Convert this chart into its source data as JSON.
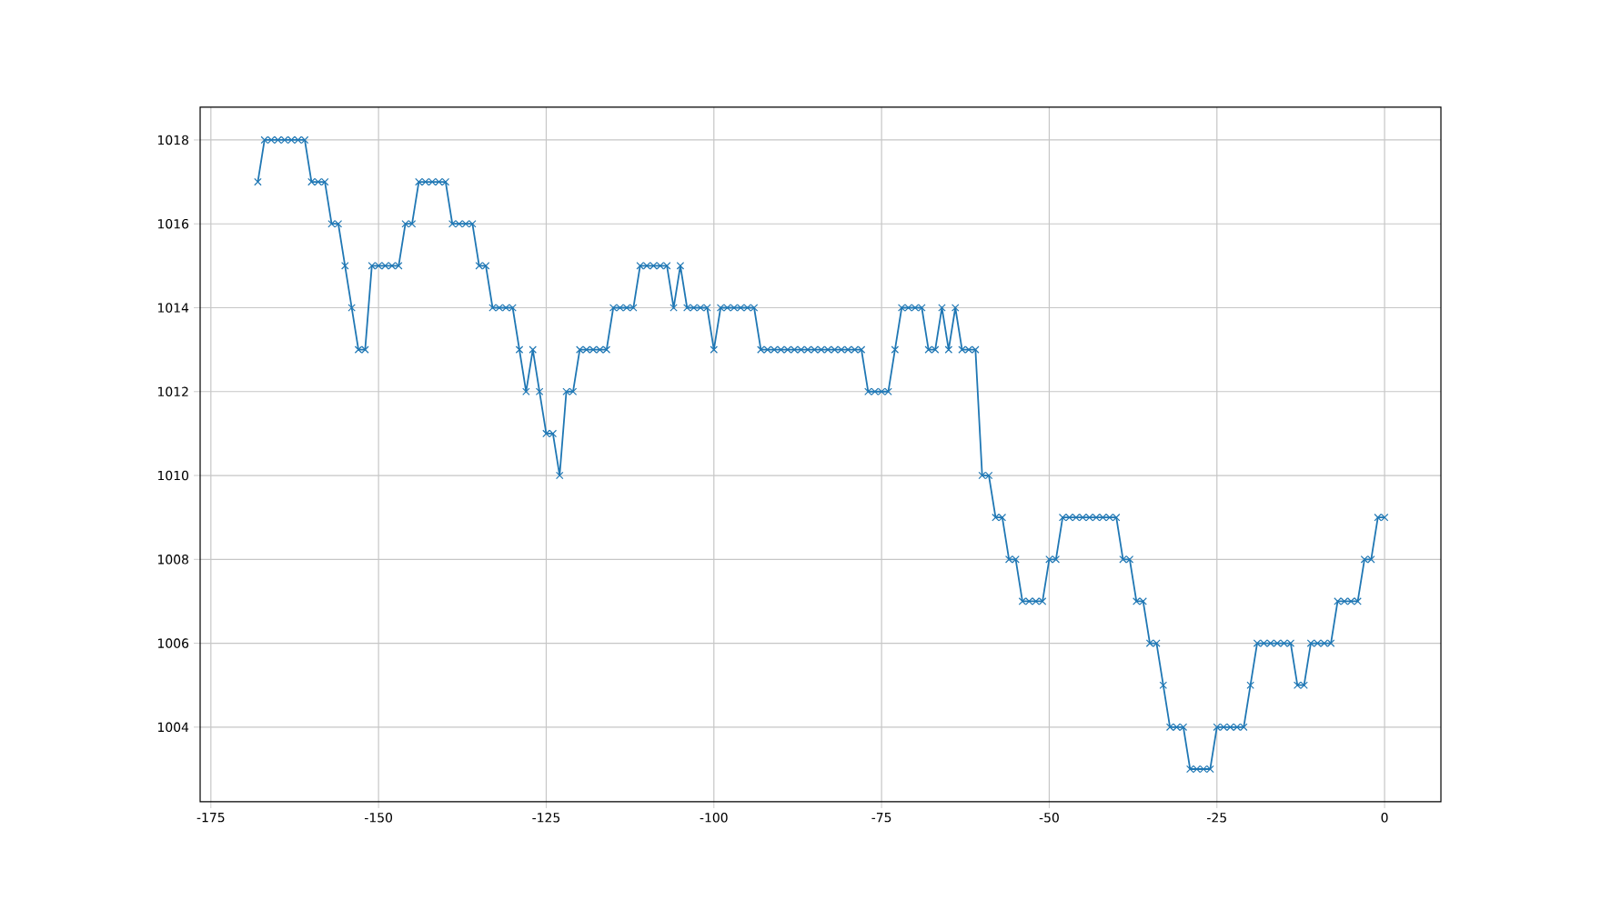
{
  "chart_data": {
    "type": "line",
    "marker": "cross",
    "grid": true,
    "color": "#1f77b4",
    "x": [
      -168,
      -167,
      -166,
      -165,
      -164,
      -163,
      -162,
      -161,
      -160,
      -159,
      -158,
      -157,
      -156,
      -155,
      -154,
      -153,
      -152,
      -151,
      -150,
      -149,
      -148,
      -147,
      -146,
      -145,
      -144,
      -143,
      -142,
      -141,
      -140,
      -139,
      -138,
      -137,
      -136,
      -135,
      -134,
      -133,
      -132,
      -131,
      -130,
      -129,
      -128,
      -127,
      -126,
      -125,
      -124,
      -123,
      -122,
      -121,
      -120,
      -119,
      -118,
      -117,
      -116,
      -115,
      -114,
      -113,
      -112,
      -111,
      -110,
      -109,
      -108,
      -107,
      -106,
      -105,
      -104,
      -103,
      -102,
      -101,
      -100,
      -99,
      -98,
      -97,
      -96,
      -95,
      -94,
      -93,
      -92,
      -91,
      -90,
      -89,
      -88,
      -87,
      -86,
      -85,
      -84,
      -83,
      -82,
      -81,
      -80,
      -79,
      -78,
      -77,
      -76,
      -75,
      -74,
      -73,
      -72,
      -71,
      -70,
      -69,
      -68,
      -67,
      -66,
      -65,
      -64,
      -63,
      -62,
      -61,
      -60,
      -59,
      -58,
      -57,
      -56,
      -55,
      -54,
      -53,
      -52,
      -51,
      -50,
      -49,
      -48,
      -47,
      -46,
      -45,
      -44,
      -43,
      -42,
      -41,
      -40,
      -39,
      -38,
      -37,
      -36,
      -35,
      -34,
      -33,
      -32,
      -31,
      -30,
      -29,
      -28,
      -27,
      -26,
      -25,
      -24,
      -23,
      -22,
      -21,
      -20,
      -19,
      -18,
      -17,
      -16,
      -15,
      -14,
      -13,
      -12,
      -11,
      -10,
      -9,
      -8,
      -7,
      -6,
      -5,
      -4,
      -3,
      -2,
      -1,
      0
    ],
    "values": [
      1017,
      1018,
      1018,
      1018,
      1018,
      1018,
      1018,
      1018,
      1017,
      1017,
      1017,
      1016,
      1016,
      1015,
      1014,
      1013,
      1013,
      1015,
      1015,
      1015,
      1015,
      1015,
      1016,
      1016,
      1017,
      1017,
      1017,
      1017,
      1017,
      1016,
      1016,
      1016,
      1016,
      1015,
      1015,
      1014,
      1014,
      1014,
      1014,
      1013,
      1012,
      1013,
      1012,
      1011,
      1011,
      1010,
      1012,
      1012,
      1013,
      1013,
      1013,
      1013,
      1013,
      1014,
      1014,
      1014,
      1014,
      1015,
      1015,
      1015,
      1015,
      1015,
      1014,
      1015,
      1014,
      1014,
      1014,
      1014,
      1013,
      1014,
      1014,
      1014,
      1014,
      1014,
      1014,
      1013,
      1013,
      1013,
      1013,
      1013,
      1013,
      1013,
      1013,
      1013,
      1013,
      1013,
      1013,
      1013,
      1013,
      1013,
      1013,
      1012,
      1012,
      1012,
      1012,
      1013,
      1014,
      1014,
      1014,
      1014,
      1013,
      1013,
      1014,
      1013,
      1014,
      1013,
      1013,
      1013,
      1010,
      1010,
      1009,
      1009,
      1008,
      1008,
      1007,
      1007,
      1007,
      1007,
      1008,
      1008,
      1009,
      1009,
      1009,
      1009,
      1009,
      1009,
      1009,
      1009,
      1009,
      1008,
      1008,
      1007,
      1007,
      1006,
      1006,
      1005,
      1004,
      1004,
      1004,
      1003,
      1003,
      1003,
      1003,
      1004,
      1004,
      1004,
      1004,
      1004,
      1005,
      1006,
      1006,
      1006,
      1006,
      1006,
      1006,
      1005,
      1005,
      1006,
      1006,
      1006,
      1006,
      1007,
      1007,
      1007,
      1007,
      1008,
      1008,
      1009,
      1009
    ],
    "xlim": [
      -176.6,
      8.4
    ],
    "ylim": [
      1002.22,
      1018.78
    ],
    "xticks": [
      -175,
      -150,
      -125,
      -100,
      -75,
      -50,
      -25,
      0
    ],
    "yticks": [
      1004,
      1006,
      1008,
      1010,
      1012,
      1014,
      1016,
      1018
    ]
  }
}
